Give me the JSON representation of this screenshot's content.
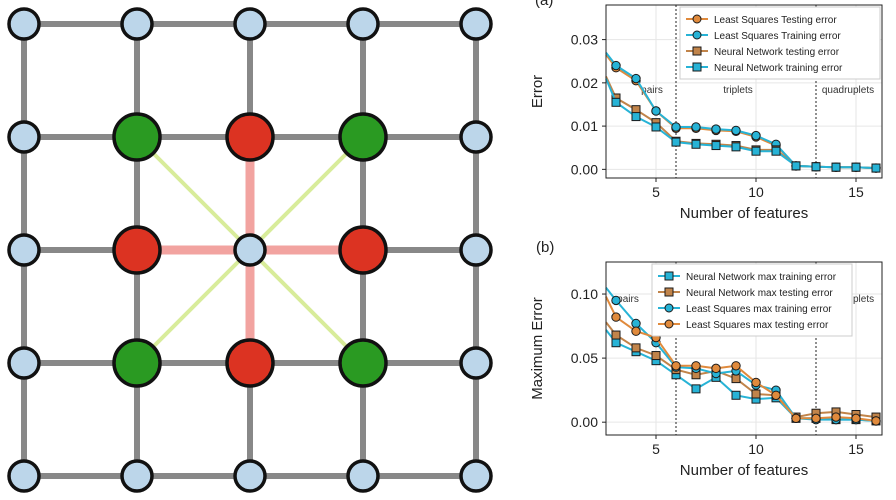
{
  "panel_labels": {
    "a": "(a)",
    "b": "(b)"
  },
  "lattice": {
    "rows": 5,
    "cols": 5,
    "node_colors": [
      [
        "blue",
        "blue",
        "blue",
        "blue",
        "blue"
      ],
      [
        "blue",
        "green",
        "red",
        "green",
        "blue"
      ],
      [
        "blue",
        "red",
        "blue",
        "red",
        "blue"
      ],
      [
        "blue",
        "green",
        "red",
        "green",
        "blue"
      ],
      [
        "blue",
        "blue",
        "blue",
        "blue",
        "blue"
      ]
    ],
    "colors": {
      "blue": "#bcd6ea",
      "green": "#2a9a22",
      "red": "#dc3322",
      "edge": "#888888",
      "pair_link": "#f2a3a0",
      "diag_link": "#d8ec9a",
      "outline": "#111111"
    }
  },
  "chart_data": [
    {
      "id": "a",
      "type": "line",
      "xlabel": "Number of features",
      "ylabel": "Error",
      "xlim": [
        2.5,
        16.3
      ],
      "ylim": [
        -0.002,
        0.038
      ],
      "xticks": [
        5,
        10,
        15
      ],
      "yticks": [
        0.0,
        0.01,
        0.02,
        0.03
      ],
      "ytick_labels": [
        "0.00",
        "0.01",
        "0.02",
        "0.03"
      ],
      "grid": true,
      "legend_position": "top-right",
      "regions": [
        {
          "label": "pairs",
          "x": 4.8
        },
        {
          "label": "triplets",
          "x": 9.1
        },
        {
          "label": "quadruplets",
          "x": 14.6
        }
      ],
      "dividers": [
        6,
        13
      ],
      "series": [
        {
          "name": "Least Squares Testing error",
          "marker": "circle",
          "color": "#e08a3c",
          "x": [
            2.5,
            3,
            4,
            5,
            6,
            7,
            8,
            9,
            10,
            11,
            12,
            13,
            14,
            15,
            16
          ],
          "y": [
            0.0265,
            0.0235,
            0.0205,
            0.0135,
            0.0095,
            0.0095,
            0.009,
            0.0088,
            0.0075,
            0.0055,
            0.0008,
            0.0006,
            0.0005,
            0.0005,
            0.0003
          ]
        },
        {
          "name": "Least Squares Training error",
          "marker": "circle",
          "color": "#27b3d6",
          "x": [
            2.5,
            3,
            4,
            5,
            6,
            7,
            8,
            9,
            10,
            11,
            12,
            13,
            14,
            15,
            16
          ],
          "y": [
            0.027,
            0.024,
            0.021,
            0.0135,
            0.0098,
            0.0098,
            0.0093,
            0.009,
            0.0078,
            0.0058,
            0.0008,
            0.0006,
            0.0005,
            0.0005,
            0.0003
          ]
        },
        {
          "name": "Neural Network testing error",
          "marker": "square",
          "color": "#c1844a",
          "x": [
            2.5,
            3,
            4,
            5,
            6,
            7,
            8,
            9,
            10,
            11,
            12,
            13,
            14,
            15,
            16
          ],
          "y": [
            0.0215,
            0.0165,
            0.0138,
            0.0108,
            0.0065,
            0.006,
            0.0058,
            0.0055,
            0.0045,
            0.0045,
            0.0008,
            0.0006,
            0.0005,
            0.0005,
            0.0003
          ]
        },
        {
          "name": "Neural Network training error",
          "marker": "square",
          "color": "#27b3d6",
          "x": [
            2.5,
            3,
            4,
            5,
            6,
            7,
            8,
            9,
            10,
            11,
            12,
            13,
            14,
            15,
            16
          ],
          "y": [
            0.021,
            0.0155,
            0.0122,
            0.0098,
            0.0063,
            0.0058,
            0.0055,
            0.0052,
            0.0042,
            0.0042,
            0.0008,
            0.0006,
            0.0005,
            0.0005,
            0.0003
          ]
        }
      ]
    },
    {
      "id": "b",
      "type": "line",
      "xlabel": "Number of features",
      "ylabel": "Maximum Error",
      "xlim": [
        2.5,
        16.3
      ],
      "ylim": [
        -0.01,
        0.125
      ],
      "xticks": [
        5,
        10,
        15
      ],
      "yticks": [
        0.0,
        0.05,
        0.1
      ],
      "ytick_labels": [
        "0.00",
        "0.05",
        "0.10"
      ],
      "grid": true,
      "legend_position": "top-right",
      "regions": [
        {
          "label": "pairs",
          "x": 3.6
        },
        {
          "label": "triplets",
          "x": 9.1
        },
        {
          "label": "quadruplets",
          "x": 14.6
        }
      ],
      "dividers": [
        6,
        13
      ],
      "series": [
        {
          "name": "Neural Network max training error",
          "marker": "square",
          "color": "#27b3d6",
          "x": [
            2.5,
            3,
            4,
            5,
            6,
            7,
            8,
            9,
            10,
            11,
            12,
            13,
            14,
            15,
            16
          ],
          "y": [
            0.072,
            0.062,
            0.055,
            0.048,
            0.037,
            0.026,
            0.035,
            0.021,
            0.018,
            0.019,
            0.003,
            0.003,
            0.002,
            0.002,
            0.001
          ]
        },
        {
          "name": "Neural Network max testing error",
          "marker": "square",
          "color": "#c1844a",
          "x": [
            2.5,
            3,
            4,
            5,
            6,
            7,
            8,
            9,
            10,
            11,
            12,
            13,
            14,
            15,
            16
          ],
          "y": [
            0.078,
            0.068,
            0.058,
            0.052,
            0.041,
            0.037,
            0.04,
            0.034,
            0.022,
            0.021,
            0.004,
            0.007,
            0.008,
            0.006,
            0.004
          ]
        },
        {
          "name": "Least Squares max training error",
          "marker": "circle",
          "color": "#27b3d6",
          "x": [
            2.5,
            3,
            4,
            5,
            6,
            7,
            8,
            9,
            10,
            11,
            12,
            13,
            14,
            15,
            16
          ],
          "y": [
            0.105,
            0.095,
            0.077,
            0.062,
            0.043,
            0.042,
            0.038,
            0.04,
            0.029,
            0.025,
            0.003,
            0.002,
            0.002,
            0.002,
            0.001
          ]
        },
        {
          "name": "Least Squares max testing error",
          "marker": "circle",
          "color": "#e08a3c",
          "x": [
            2.5,
            3,
            4,
            5,
            6,
            7,
            8,
            9,
            10,
            11,
            12,
            13,
            14,
            15,
            16
          ],
          "y": [
            0.098,
            0.082,
            0.071,
            0.066,
            0.044,
            0.044,
            0.042,
            0.044,
            0.031,
            0.021,
            0.003,
            0.003,
            0.004,
            0.003,
            0.001
          ]
        }
      ]
    }
  ]
}
